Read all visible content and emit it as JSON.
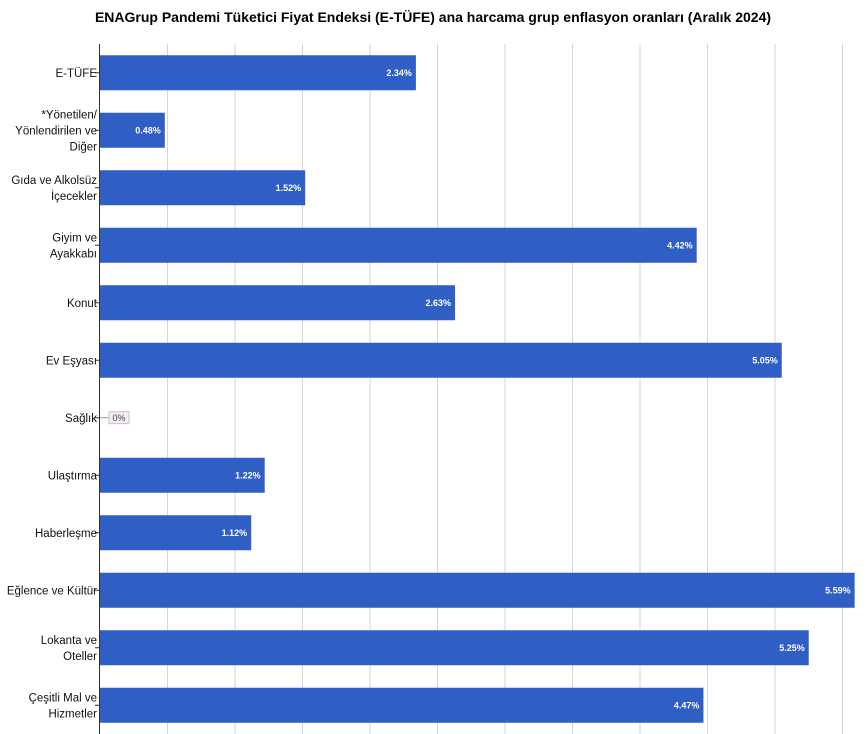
{
  "chart_data": {
    "type": "bar",
    "orientation": "horizontal",
    "title": "ENAGrup Pandemi Tüketici Fiyat Endeksi (E-TÜFE) ana harcama grup enflasyon oranları (Aralık 2024)",
    "categories": [
      "E-TÜFE",
      "*Yönetilen/ Yönlendirilen ve Diğer",
      "Gıda ve Alkolsüz İçecekler",
      "Giyim ve Ayakkabı",
      "Konut",
      "Ev Eşyası",
      "Sağlık",
      "Ulaştırma",
      "Haberleşme",
      "Eğlence ve Kültür",
      "Lokanta ve Oteller",
      "Çeşitli Mal ve Hizmetler"
    ],
    "category_lines": [
      [
        "E-TÜFE"
      ],
      [
        "*Yönetilen/",
        "Yönlendirilen ve",
        "Diğer"
      ],
      [
        "Gıda ve Alkolsüz",
        "İçecekler"
      ],
      [
        "Giyim ve",
        "Ayakkabı"
      ],
      [
        "Konut"
      ],
      [
        "Ev Eşyası"
      ],
      [
        "Sağlık"
      ],
      [
        "Ulaştırma"
      ],
      [
        "Haberleşme"
      ],
      [
        "Eğlence ve Kültür"
      ],
      [
        "Lokanta ve",
        "Oteller"
      ],
      [
        "Çeşitli Mal ve",
        "Hizmetler"
      ]
    ],
    "values": [
      2.34,
      0.48,
      1.52,
      4.42,
      2.63,
      5.05,
      0,
      1.22,
      1.12,
      5.59,
      5.25,
      4.47
    ],
    "data_labels": [
      "2.34%",
      "0.48%",
      "1.52%",
      "4.42%",
      "2.63%",
      "5.05%",
      "0%",
      "1.22%",
      "1.12%",
      "5.59%",
      "5.25%",
      "4.47%"
    ],
    "xlim": [
      0,
      5.6
    ],
    "grid": true,
    "legend": "none",
    "bar_color": "#2f5ec4"
  }
}
